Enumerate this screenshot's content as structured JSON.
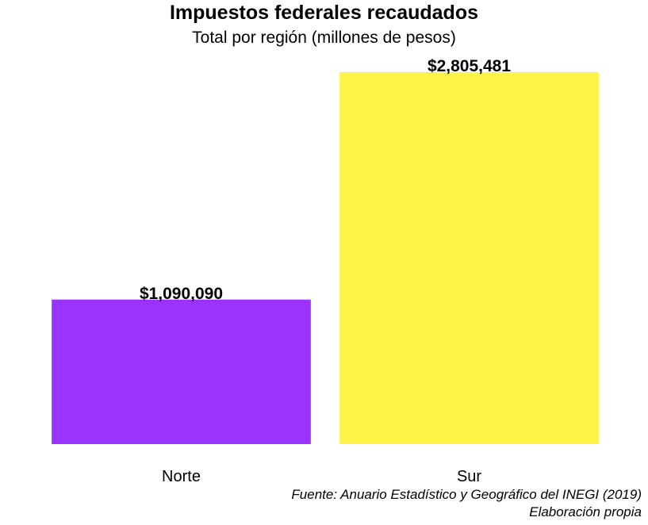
{
  "chart_data": {
    "type": "bar",
    "title": "Impuestos federales recaudados",
    "subtitle": "Total por región (millones de pesos)",
    "categories": [
      "Norte",
      "Sur"
    ],
    "values": [
      1090090,
      2805481
    ],
    "value_labels": [
      "$1,090,090",
      "$2,805,481"
    ],
    "colors": [
      "#9B33FF",
      "#FFF34A"
    ],
    "xlabel": "",
    "ylabel": "",
    "ylim": [
      0,
      2805481
    ],
    "grid": false,
    "legend": "none",
    "caption_lines": [
      "Fuente: Anuario Estadístico y Geográfico del INEGI (2019)",
      "Elaboración propia"
    ]
  }
}
